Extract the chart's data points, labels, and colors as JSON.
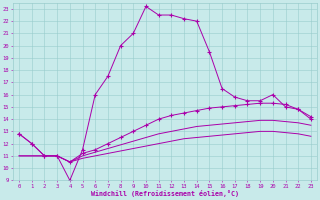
{
  "xlabel": "Windchill (Refroidissement éolien,°C)",
  "bg_color": "#c8eaea",
  "line_color": "#aa00aa",
  "grid_color": "#99cccc",
  "xlim": [
    -0.5,
    23.5
  ],
  "ylim": [
    9,
    23.5
  ],
  "xticks": [
    0,
    1,
    2,
    3,
    4,
    5,
    6,
    7,
    8,
    9,
    10,
    11,
    12,
    13,
    14,
    15,
    16,
    17,
    18,
    19,
    20,
    21,
    22,
    23
  ],
  "yticks": [
    9,
    10,
    11,
    12,
    13,
    14,
    15,
    16,
    17,
    18,
    19,
    20,
    21,
    22,
    23
  ],
  "line1_x": [
    0,
    1,
    2,
    3,
    4,
    5,
    6,
    7,
    8,
    9,
    10,
    11,
    12,
    13,
    14,
    15,
    16,
    17,
    18,
    19,
    20,
    21,
    22,
    23
  ],
  "line1_y": [
    12.8,
    12.0,
    11.0,
    11.0,
    9.0,
    11.5,
    16.0,
    17.5,
    20.0,
    21.0,
    23.2,
    22.5,
    22.5,
    22.2,
    22.0,
    19.5,
    16.5,
    15.8,
    15.5,
    15.5,
    16.0,
    15.0,
    14.8,
    14.0
  ],
  "line2_x": [
    0,
    1,
    2,
    3,
    4,
    5,
    6,
    7,
    8,
    9,
    10,
    11,
    12,
    13,
    14,
    15,
    16,
    17,
    18,
    19,
    20,
    21,
    22,
    23
  ],
  "line2_y": [
    12.8,
    12.0,
    11.0,
    11.0,
    10.5,
    11.2,
    11.5,
    12.0,
    12.5,
    13.0,
    13.5,
    14.0,
    14.3,
    14.5,
    14.7,
    14.9,
    15.0,
    15.1,
    15.2,
    15.3,
    15.3,
    15.2,
    14.8,
    14.2
  ],
  "line3_x": [
    0,
    1,
    2,
    3,
    4,
    5,
    6,
    7,
    8,
    9,
    10,
    11,
    12,
    13,
    14,
    15,
    16,
    17,
    18,
    19,
    20,
    21,
    22,
    23
  ],
  "line3_y": [
    11.0,
    11.0,
    11.0,
    11.0,
    10.5,
    11.0,
    11.3,
    11.6,
    11.9,
    12.2,
    12.5,
    12.8,
    13.0,
    13.2,
    13.4,
    13.5,
    13.6,
    13.7,
    13.8,
    13.9,
    13.9,
    13.8,
    13.7,
    13.5
  ],
  "line4_x": [
    0,
    1,
    2,
    3,
    4,
    5,
    6,
    7,
    8,
    9,
    10,
    11,
    12,
    13,
    14,
    15,
    16,
    17,
    18,
    19,
    20,
    21,
    22,
    23
  ],
  "line4_y": [
    11.0,
    11.0,
    11.0,
    11.0,
    10.5,
    10.8,
    11.0,
    11.2,
    11.4,
    11.6,
    11.8,
    12.0,
    12.2,
    12.4,
    12.5,
    12.6,
    12.7,
    12.8,
    12.9,
    13.0,
    13.0,
    12.9,
    12.8,
    12.6
  ]
}
